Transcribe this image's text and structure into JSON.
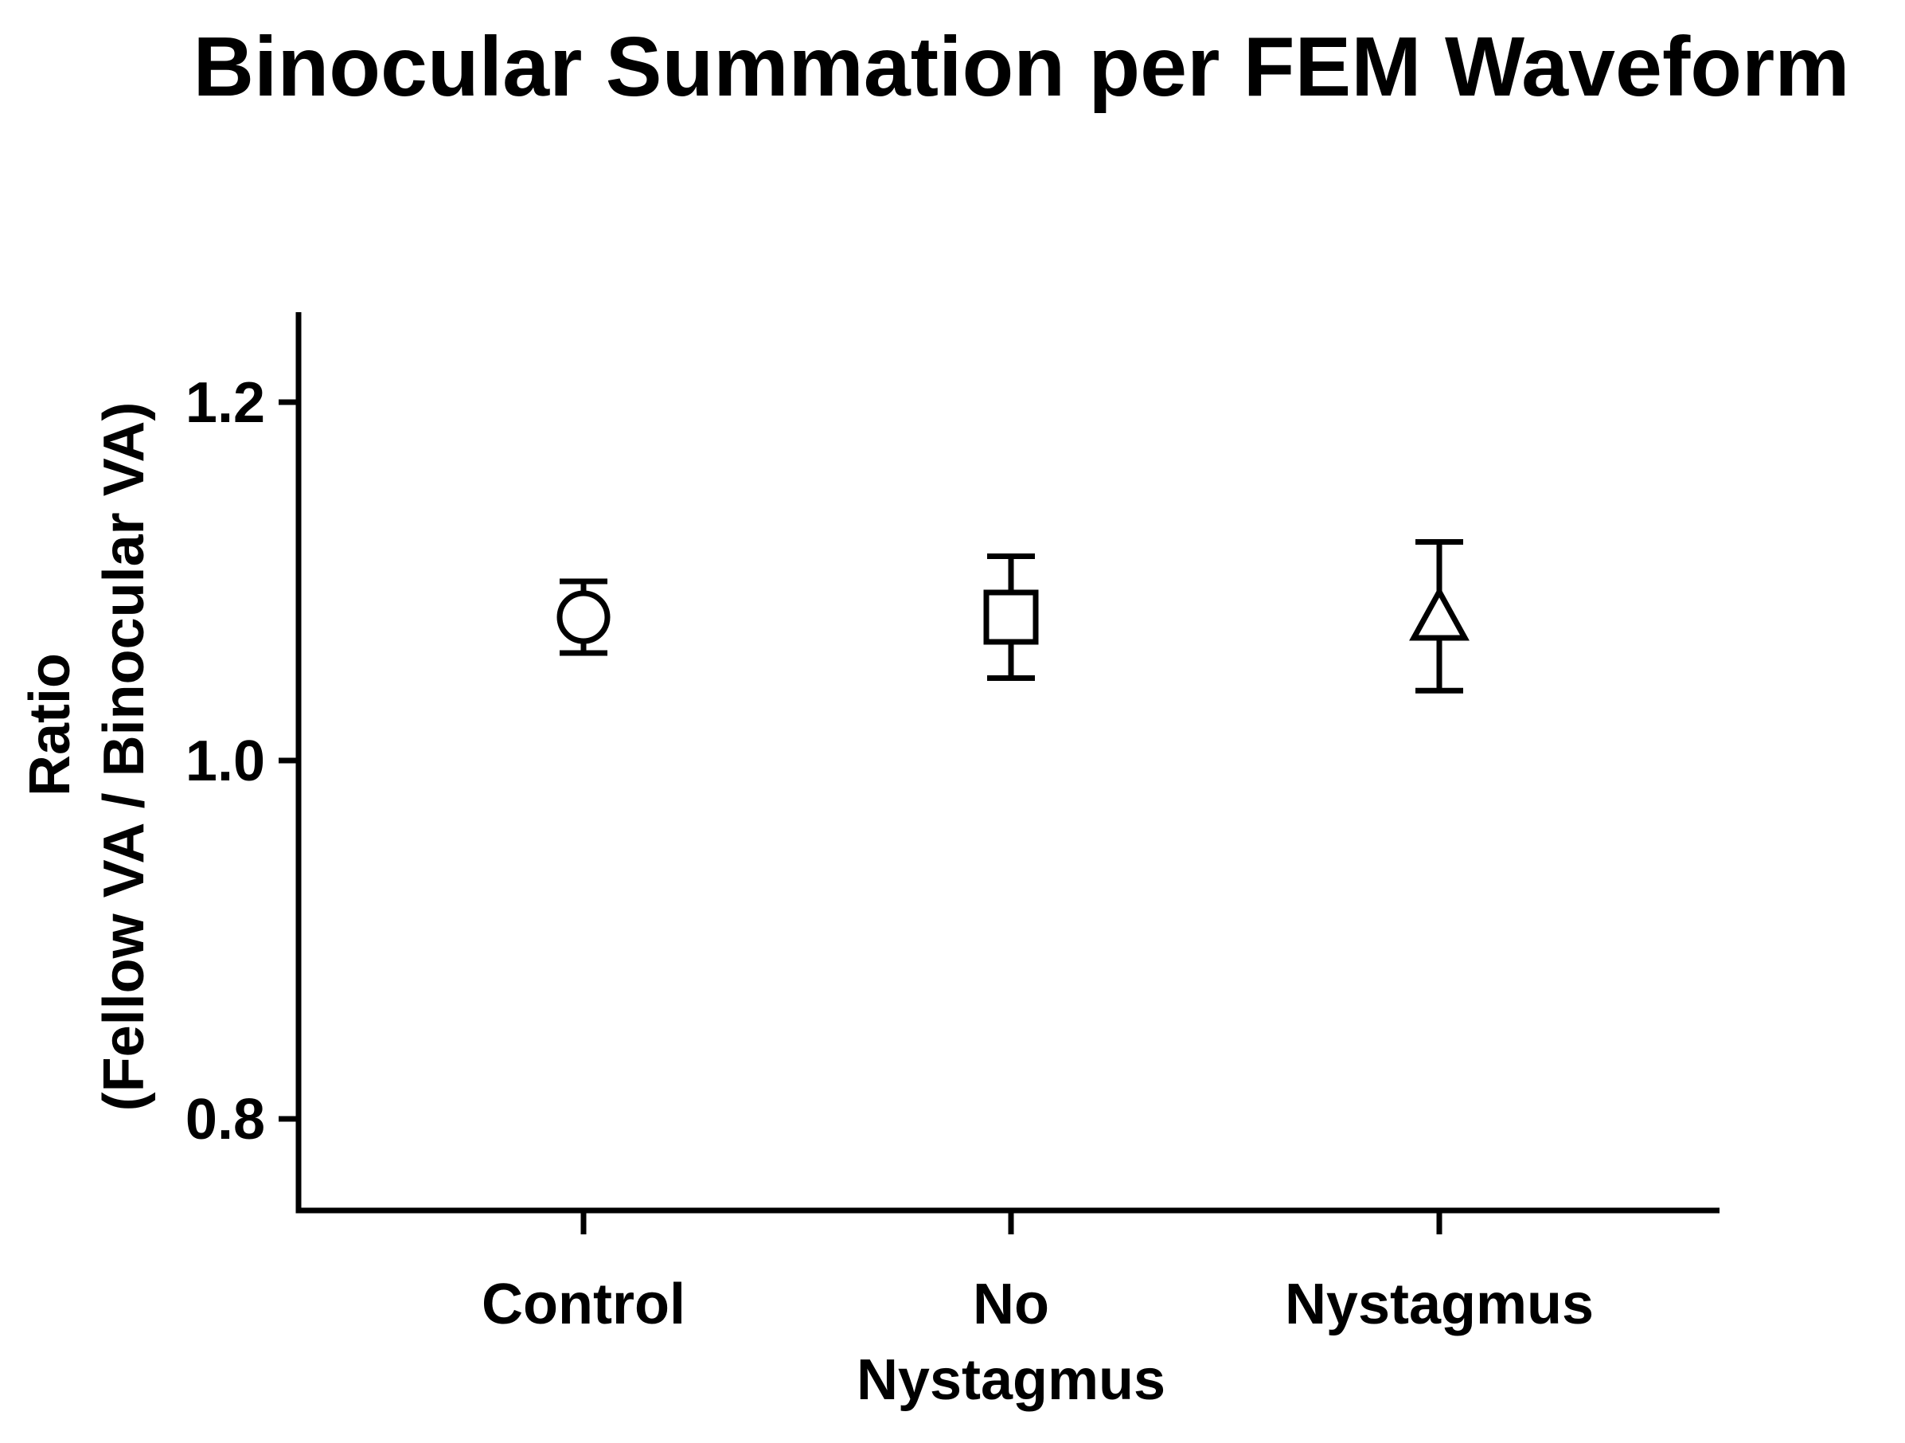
{
  "chart_data": {
    "type": "scatter",
    "title": "Binocular Summation per FEM Waveform",
    "ylabel_lines": [
      "Ratio",
      "(Fellow VA / Binocular VA)"
    ],
    "xlabel": "",
    "categories": [
      {
        "lines": [
          "Control"
        ]
      },
      {
        "lines": [
          "No",
          "Nystagmus"
        ]
      },
      {
        "lines": [
          "Nystagmus"
        ]
      }
    ],
    "ylim": [
      0.75,
      1.25
    ],
    "yticks": [
      0.8,
      1.0,
      1.2
    ],
    "ytick_labels": [
      "0.8",
      "1.0",
      "1.2"
    ],
    "grid": false,
    "series": [
      {
        "points": [
          {
            "category": 0,
            "y": 1.08,
            "ylow": 1.06,
            "yhigh": 1.1,
            "marker": "circle"
          },
          {
            "category": 1,
            "y": 1.08,
            "ylow": 1.046,
            "yhigh": 1.114,
            "marker": "square"
          },
          {
            "category": 2,
            "y": 1.08,
            "ylow": 1.039,
            "yhigh": 1.122,
            "marker": "triangle"
          }
        ]
      }
    ],
    "marker_fill": "#ffffff",
    "line_color": "#000000"
  }
}
